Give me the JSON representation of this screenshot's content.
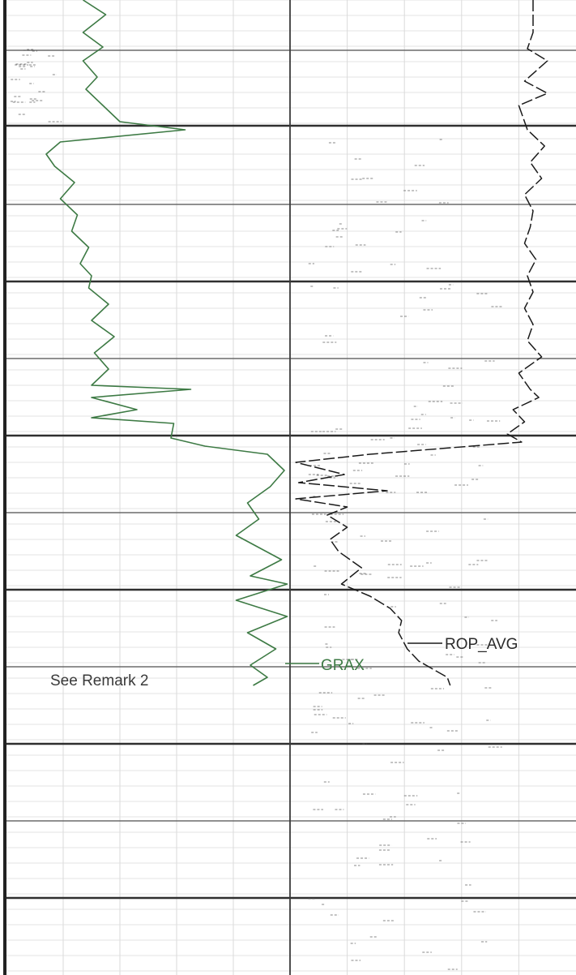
{
  "chart_data": {
    "type": "line",
    "title": "",
    "xlabel": "",
    "ylabel": "",
    "grid": true,
    "y_unit": "depth (chart units, 0 = top, increasing downward)",
    "ylim": [
      0,
      1202
    ],
    "tracks": [
      {
        "name": "left track",
        "xlim": [
          0,
          10
        ]
      },
      {
        "name": "right track",
        "xlim": [
          0,
          10
        ]
      }
    ],
    "series": [
      {
        "name": "GRAX",
        "track": 0,
        "color": "#3d7a44",
        "points": [
          [
            2.7,
            0
          ],
          [
            3.5,
            18
          ],
          [
            2.7,
            40
          ],
          [
            3.4,
            58
          ],
          [
            2.7,
            75
          ],
          [
            3.2,
            95
          ],
          [
            2.8,
            110
          ],
          [
            3.4,
            130
          ],
          [
            4.0,
            150
          ],
          [
            6.3,
            160
          ],
          [
            1.9,
            175
          ],
          [
            1.4,
            190
          ],
          [
            1.7,
            205
          ],
          [
            2.4,
            225
          ],
          [
            1.9,
            245
          ],
          [
            2.5,
            265
          ],
          [
            2.3,
            285
          ],
          [
            2.9,
            305
          ],
          [
            2.6,
            325
          ],
          [
            3.0,
            340
          ],
          [
            2.9,
            355
          ],
          [
            3.6,
            375
          ],
          [
            3.0,
            395
          ],
          [
            3.8,
            415
          ],
          [
            3.1,
            435
          ],
          [
            3.6,
            455
          ],
          [
            3.0,
            475
          ],
          [
            6.5,
            480
          ],
          [
            3.0,
            490
          ],
          [
            4.6,
            505
          ],
          [
            3.0,
            515
          ],
          [
            5.9,
            522
          ],
          [
            5.8,
            540
          ],
          [
            7.0,
            550
          ],
          [
            9.2,
            560
          ],
          [
            9.8,
            580
          ],
          [
            9.3,
            600
          ],
          [
            8.5,
            620
          ],
          [
            8.9,
            640
          ],
          [
            8.1,
            660
          ],
          [
            9.7,
            690
          ],
          [
            8.6,
            710
          ],
          [
            9.9,
            720
          ],
          [
            8.1,
            740
          ],
          [
            9.9,
            760
          ],
          [
            8.5,
            780
          ],
          [
            9.5,
            800
          ],
          [
            8.6,
            820
          ],
          [
            9.2,
            835
          ],
          [
            8.7,
            845
          ]
        ]
      },
      {
        "name": "ROP_AVG",
        "track": 1,
        "color": "#1a1a1a",
        "points": [
          [
            8.5,
            0
          ],
          [
            8.5,
            40
          ],
          [
            8.3,
            60
          ],
          [
            9.0,
            75
          ],
          [
            8.2,
            100
          ],
          [
            9.0,
            115
          ],
          [
            8.0,
            130
          ],
          [
            8.3,
            160
          ],
          [
            8.9,
            180
          ],
          [
            8.4,
            200
          ],
          [
            8.8,
            220
          ],
          [
            8.2,
            240
          ],
          [
            8.5,
            260
          ],
          [
            8.4,
            280
          ],
          [
            8.2,
            300
          ],
          [
            8.6,
            320
          ],
          [
            8.3,
            340
          ],
          [
            8.5,
            360
          ],
          [
            8.2,
            380
          ],
          [
            8.5,
            400
          ],
          [
            8.3,
            420
          ],
          [
            8.8,
            440
          ],
          [
            8.0,
            460
          ],
          [
            8.4,
            480
          ],
          [
            8.7,
            490
          ],
          [
            7.8,
            505
          ],
          [
            8.2,
            520
          ],
          [
            7.6,
            535
          ],
          [
            8.1,
            545
          ],
          [
            2.8,
            560
          ],
          [
            0.2,
            570
          ],
          [
            1.9,
            585
          ],
          [
            0.3,
            595
          ],
          [
            3.4,
            605
          ],
          [
            0.2,
            615
          ],
          [
            2.0,
            625
          ],
          [
            1.3,
            635
          ],
          [
            2.0,
            650
          ],
          [
            1.4,
            665
          ],
          [
            1.7,
            680
          ],
          [
            2.5,
            700
          ],
          [
            1.8,
            720
          ],
          [
            2.8,
            735
          ],
          [
            3.5,
            750
          ],
          [
            3.9,
            765
          ],
          [
            3.8,
            780
          ],
          [
            4.1,
            800
          ],
          [
            4.5,
            815
          ],
          [
            5.5,
            835
          ],
          [
            5.6,
            845
          ]
        ]
      }
    ],
    "annotations": {
      "grax_label": "GRAX",
      "rop_label": "ROP_AVG",
      "remark": "See Remark 2"
    }
  }
}
